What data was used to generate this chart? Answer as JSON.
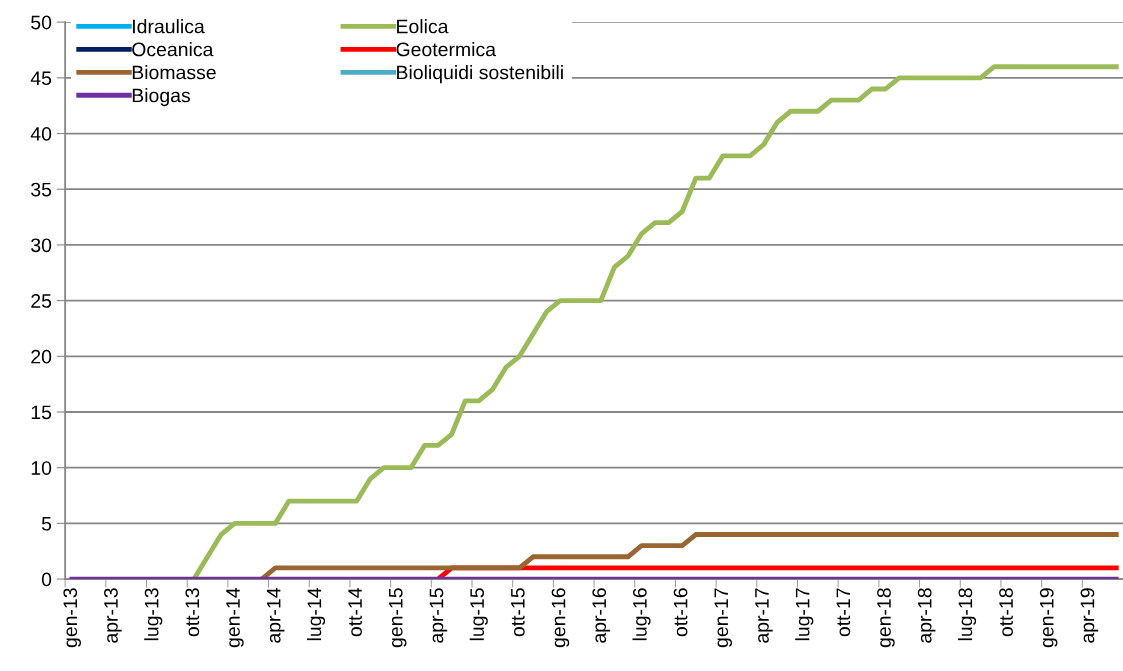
{
  "chart_data": {
    "type": "line",
    "categories": [
      "gen-13",
      null,
      null,
      "apr-13",
      null,
      null,
      "lug-13",
      null,
      null,
      "ott-13",
      null,
      null,
      "gen-14",
      null,
      null,
      "apr-14",
      null,
      null,
      "lug-14",
      null,
      null,
      "ott-14",
      null,
      null,
      "gen-15",
      null,
      null,
      "apr-15",
      null,
      null,
      "lug-15",
      null,
      null,
      "ott-15",
      null,
      null,
      "gen-16",
      null,
      null,
      "apr-16",
      null,
      null,
      "lug-16",
      null,
      null,
      "ott-16",
      null,
      null,
      "gen-17",
      null,
      null,
      "apr-17",
      null,
      null,
      "lug-17",
      null,
      null,
      "ott-17",
      null,
      null,
      "gen-18",
      null,
      null,
      "apr-18",
      null,
      null,
      "lug-18",
      null,
      null,
      "ott-18",
      null,
      null,
      "gen-19",
      null,
      null,
      "apr-19",
      null,
      null
    ],
    "series": [
      {
        "name": "Idraulica",
        "color": "#00b0f0",
        "values": [
          null,
          null,
          null,
          null,
          null,
          null,
          null,
          null,
          null,
          null,
          null,
          null,
          null,
          null,
          null,
          null,
          null,
          null,
          null,
          null,
          null,
          null,
          null,
          null,
          null,
          null,
          null,
          null,
          null,
          null,
          null,
          null,
          null,
          null,
          null,
          null,
          null,
          null,
          null,
          null,
          null,
          null,
          null,
          null,
          null,
          null,
          null,
          null,
          null,
          null,
          null,
          null,
          null,
          null,
          null,
          null,
          null,
          null,
          null,
          null,
          null,
          null,
          null,
          null,
          null,
          null,
          null,
          null,
          null,
          null,
          null,
          null,
          null,
          null,
          null,
          null,
          null,
          null
        ]
      },
      {
        "name": "Eolica",
        "color": "#9bbb59",
        "values": [
          null,
          null,
          null,
          null,
          null,
          null,
          null,
          null,
          null,
          0,
          2,
          4,
          5,
          5,
          5,
          5,
          7,
          7,
          7,
          7,
          7,
          7,
          9,
          10,
          10,
          10,
          12,
          12,
          13,
          16,
          16,
          17,
          19,
          20,
          22,
          24,
          25,
          25,
          25,
          25,
          28,
          29,
          31,
          32,
          32,
          33,
          36,
          36,
          38,
          38,
          38,
          39,
          41,
          42,
          42,
          42,
          43,
          43,
          43,
          44,
          44,
          45,
          45,
          45,
          45,
          45,
          45,
          45,
          46,
          46,
          46,
          46,
          46,
          46,
          46,
          46,
          46,
          46
        ]
      },
      {
        "name": "Oceanica",
        "color": "#002060",
        "values": [
          null,
          null,
          null,
          null,
          null,
          null,
          null,
          null,
          null,
          null,
          null,
          null,
          null,
          null,
          null,
          null,
          null,
          null,
          null,
          null,
          null,
          null,
          null,
          null,
          null,
          null,
          null,
          null,
          null,
          null,
          null,
          null,
          null,
          null,
          null,
          null,
          null,
          null,
          null,
          null,
          null,
          null,
          null,
          null,
          null,
          null,
          null,
          null,
          null,
          null,
          null,
          null,
          null,
          null,
          null,
          null,
          null,
          null,
          null,
          null,
          null,
          null,
          null,
          null,
          null,
          null,
          null,
          null,
          null,
          null,
          null,
          null,
          null,
          null,
          null,
          null,
          null,
          null
        ]
      },
      {
        "name": "Geotermica",
        "color": "#ff0000",
        "values": [
          null,
          null,
          null,
          null,
          null,
          null,
          null,
          null,
          null,
          null,
          null,
          null,
          null,
          null,
          null,
          null,
          null,
          null,
          null,
          null,
          null,
          null,
          null,
          null,
          null,
          null,
          null,
          0,
          1,
          1,
          1,
          1,
          1,
          1,
          1,
          1,
          1,
          1,
          1,
          1,
          1,
          1,
          1,
          1,
          1,
          1,
          1,
          1,
          1,
          1,
          1,
          1,
          1,
          1,
          1,
          1,
          1,
          1,
          1,
          1,
          1,
          1,
          1,
          1,
          1,
          1,
          1,
          1,
          1,
          1,
          1,
          1,
          1,
          1,
          1,
          1,
          1,
          1
        ]
      },
      {
        "name": "Biomasse",
        "color": "#996633",
        "values": [
          null,
          null,
          null,
          null,
          null,
          null,
          null,
          null,
          null,
          null,
          null,
          null,
          null,
          null,
          0,
          1,
          1,
          1,
          1,
          1,
          1,
          1,
          1,
          1,
          1,
          1,
          1,
          1,
          1,
          1,
          1,
          1,
          1,
          1,
          2,
          2,
          2,
          2,
          2,
          2,
          2,
          2,
          3,
          3,
          3,
          3,
          4,
          4,
          4,
          4,
          4,
          4,
          4,
          4,
          4,
          4,
          4,
          4,
          4,
          4,
          4,
          4,
          4,
          4,
          4,
          4,
          4,
          4,
          4,
          4,
          4,
          4,
          4,
          4,
          4,
          4,
          4,
          4
        ]
      },
      {
        "name": "Bioliquidi sostenibili",
        "color": "#4bacc6",
        "values": [
          null,
          null,
          null,
          null,
          null,
          null,
          null,
          null,
          null,
          null,
          null,
          null,
          null,
          null,
          null,
          null,
          null,
          null,
          null,
          null,
          null,
          null,
          null,
          null,
          null,
          null,
          null,
          null,
          null,
          null,
          null,
          null,
          null,
          null,
          null,
          null,
          null,
          null,
          null,
          null,
          null,
          null,
          null,
          null,
          null,
          null,
          null,
          null,
          null,
          null,
          null,
          null,
          null,
          null,
          null,
          null,
          null,
          null,
          null,
          null,
          null,
          null,
          null,
          null,
          null,
          null,
          null,
          null,
          null,
          null,
          null,
          null,
          null,
          null,
          null,
          null,
          null,
          null
        ]
      },
      {
        "name": "Biogas",
        "color": "#7030a0",
        "values": [
          0,
          0,
          0,
          0,
          0,
          0,
          0,
          0,
          0,
          0,
          0,
          0,
          0,
          0,
          0,
          0,
          0,
          0,
          0,
          0,
          0,
          0,
          0,
          0,
          0,
          0,
          0,
          0,
          0,
          0,
          0,
          0,
          0,
          0,
          0,
          0,
          0,
          0,
          0,
          0,
          0,
          0,
          0,
          0,
          0,
          0,
          0,
          0,
          0,
          0,
          0,
          0,
          0,
          0,
          0,
          0,
          0,
          0,
          0,
          0,
          0,
          0,
          0,
          0,
          0,
          0,
          0,
          0,
          0,
          0,
          0,
          0,
          0,
          0,
          0,
          0,
          0,
          0
        ]
      }
    ],
    "ylim": [
      0,
      50
    ],
    "yticks": [
      0,
      5,
      10,
      15,
      20,
      25,
      30,
      35,
      40,
      45,
      50
    ],
    "grid": "y",
    "legend": "top left",
    "marker": "none",
    "line_style": "solid"
  }
}
